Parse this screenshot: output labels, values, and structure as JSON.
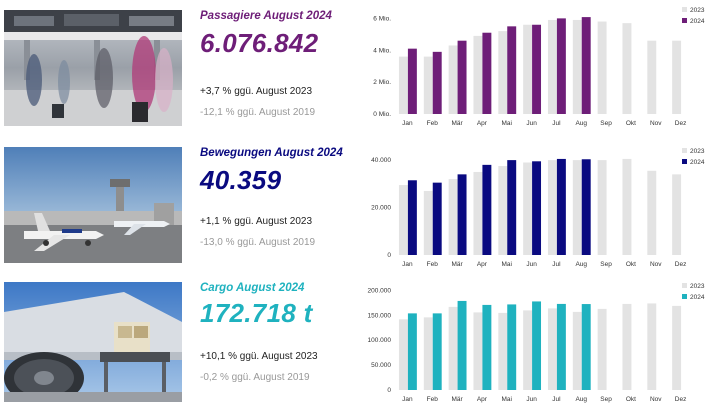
{
  "colors": {
    "bar_2023": "#e3e3e3",
    "passengers": "#6e1e78",
    "movements": "#0a0a80",
    "cargo": "#1fb2bf"
  },
  "panels": [
    {
      "kpi": {
        "title": "Passagiere August 2024",
        "value": "6.076.842",
        "delta_prev_year": "+3,7 % ggü. August 2023",
        "delta_2019": "-12,1 % ggü. August 2019"
      },
      "photo_icon": "airport-terminal-photo"
    },
    {
      "kpi": {
        "title": "Bewegungen August 2024",
        "value": "40.359",
        "delta_prev_year": "+1,1 % ggü. August 2023",
        "delta_2019": "-13,0 % ggü. August 2019"
      },
      "photo_icon": "airport-apron-photo"
    },
    {
      "kpi": {
        "title": "Cargo August 2024",
        "value": "172.718 t",
        "delta_prev_year": "+10,1 % ggü. August 2023",
        "delta_2019": "-0,2 % ggü. August 2019"
      },
      "photo_icon": "cargo-loading-photo"
    }
  ],
  "chart_data": [
    {
      "type": "bar",
      "categories": [
        "Jan",
        "Feb",
        "Mär",
        "Apr",
        "Mai",
        "Jun",
        "Jul",
        "Aug",
        "Sep",
        "Okt",
        "Nov",
        "Dez"
      ],
      "series": [
        {
          "name": "2023",
          "values": [
            3.6,
            3.6,
            4.3,
            4.9,
            5.2,
            5.6,
            5.9,
            5.9,
            5.8,
            5.7,
            4.6,
            4.6
          ]
        },
        {
          "name": "2024",
          "values": [
            4.1,
            3.9,
            4.6,
            5.1,
            5.5,
            5.6,
            6.0,
            6.08,
            null,
            null,
            null,
            null
          ]
        }
      ],
      "y_ticks": [
        0,
        2,
        4,
        6
      ],
      "y_tick_labels": [
        "0 Mio.",
        "2 Mio.",
        "4 Mio.",
        "6 Mio."
      ],
      "ylim": [
        0,
        6.4
      ],
      "legend": "top-right",
      "grid": false
    },
    {
      "type": "bar",
      "categories": [
        "Jan",
        "Feb",
        "Mär",
        "Apr",
        "Mai",
        "Jun",
        "Jul",
        "Aug",
        "Sep",
        "Okt",
        "Nov",
        "Dez"
      ],
      "series": [
        {
          "name": "2023",
          "values": [
            29500,
            27000,
            32000,
            35000,
            37500,
            39000,
            40000,
            40000,
            40000,
            40500,
            35500,
            34000
          ]
        },
        {
          "name": "2024",
          "values": [
            31500,
            30500,
            34000,
            38000,
            40000,
            39500,
            40500,
            40359,
            null,
            null,
            null,
            null
          ]
        }
      ],
      "y_ticks": [
        0,
        20000,
        40000
      ],
      "y_tick_labels": [
        "0",
        "20.000",
        "40.000"
      ],
      "ylim": [
        0,
        43000
      ],
      "legend": "top-right",
      "grid": false
    },
    {
      "type": "bar",
      "categories": [
        "Jan",
        "Feb",
        "Mär",
        "Apr",
        "Mai",
        "Jun",
        "Jul",
        "Aug",
        "Sep",
        "Okt",
        "Nov",
        "Dez"
      ],
      "series": [
        {
          "name": "2023",
          "values": [
            142000,
            146000,
            167000,
            156000,
            155000,
            160000,
            164000,
            157000,
            163000,
            173000,
            174000,
            169000
          ]
        },
        {
          "name": "2024",
          "values": [
            154000,
            154000,
            179000,
            171000,
            172000,
            178000,
            173000,
            172718,
            null,
            null,
            null,
            null
          ]
        }
      ],
      "y_ticks": [
        0,
        50000,
        100000,
        150000,
        200000
      ],
      "y_tick_labels": [
        "0",
        "50.000",
        "100.000",
        "150.000",
        "200.000"
      ],
      "ylim": [
        0,
        205000
      ],
      "legend": "top-right",
      "grid": false
    }
  ]
}
